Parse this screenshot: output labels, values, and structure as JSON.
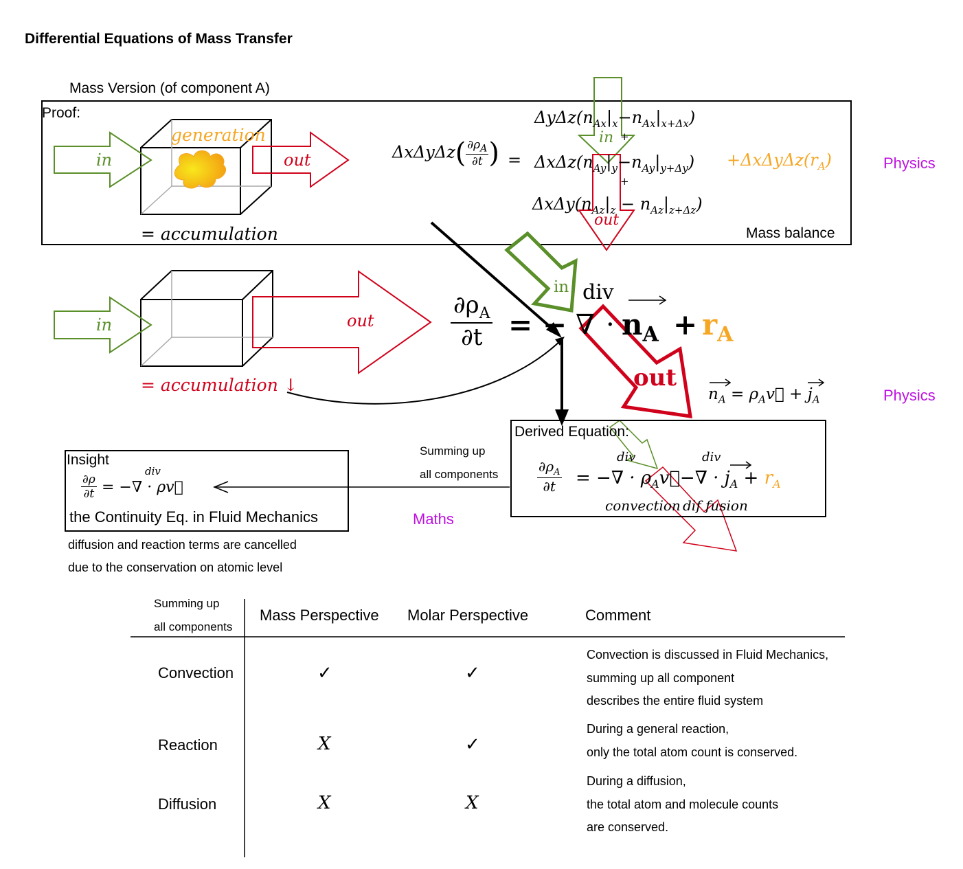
{
  "title": "Differential Equations of Mass Transfer",
  "mass_version_label": "Mass Version (of component A)",
  "proof_label": "Proof:",
  "mass_balance_label": "Mass balance",
  "cube_labels": {
    "generation": "generation",
    "in": "in",
    "out": "out",
    "accumulation": "= accumulation",
    "accumulation_down": "= accumulation ↓"
  },
  "balance_eq": {
    "lhs_prefix": "ΔxΔyΔz",
    "lhs_num": "∂ρ",
    "lhs_num_sub": "A",
    "lhs_den": "∂t",
    "equals": "=",
    "row1": "ΔyΔz(n",
    "row2": "ΔxΔz(n",
    "row3": "ΔxΔy(n",
    "gen_term": "+ΔxΔyΔz(r",
    "gen_sub": "A",
    "plus": "+",
    "in_label": "in",
    "out_label": "out"
  },
  "main_eq": {
    "num": "∂ρ",
    "num_sub": "A",
    "den": "∂t",
    "equals": "=",
    "minus": "−",
    "nabla": "∇",
    "dot": "·",
    "n": "n",
    "n_sub": "A",
    "plus": "+",
    "r": "r",
    "r_sub": "A",
    "div": "div",
    "in_label": "in",
    "out_label": "out",
    "flux_def": "= ρ",
    "flux_def_sub": "A"
  },
  "side_labels": {
    "physics_1": "Physics",
    "physics_2": "Physics",
    "maths": "Maths"
  },
  "derived": {
    "title": "Derived Equation:",
    "div1": "div",
    "div2": "div",
    "convection": "convection",
    "diffusion": "dif fusion"
  },
  "summing_label_1": "Summing up",
  "summing_label_2": "all components",
  "insight": {
    "title": "Insight",
    "div": "div",
    "caption": "the Continuity Eq. in Fluid Mechanics",
    "note_1": "diffusion and reaction terms are cancelled",
    "note_2": "due to the conservation on atomic level"
  },
  "table": {
    "corner_1": "Summing up",
    "corner_2": "all components",
    "headers": [
      "Mass Perspective",
      "Molar Perspective",
      "Comment"
    ],
    "rows": [
      {
        "label": "Convection",
        "mass": "✓",
        "molar": "✓",
        "comment": [
          "Convection is discussed in Fluid Mechanics,",
          "summing up all component",
          "describes the entire fluid system"
        ]
      },
      {
        "label": "Reaction",
        "mass": "X",
        "molar": "✓",
        "comment": [
          "During a general reaction,",
          "only the total atom count is conserved."
        ]
      },
      {
        "label": "Diffusion",
        "mass": "X",
        "molar": "X",
        "comment": [
          "During a diffusion,",
          "the total atom and molecule counts",
          "are conserved."
        ]
      }
    ]
  },
  "colors": {
    "green": "#5a8f29",
    "red": "#d0021b",
    "orange": "#f5a623",
    "purple": "#bd10e0"
  }
}
